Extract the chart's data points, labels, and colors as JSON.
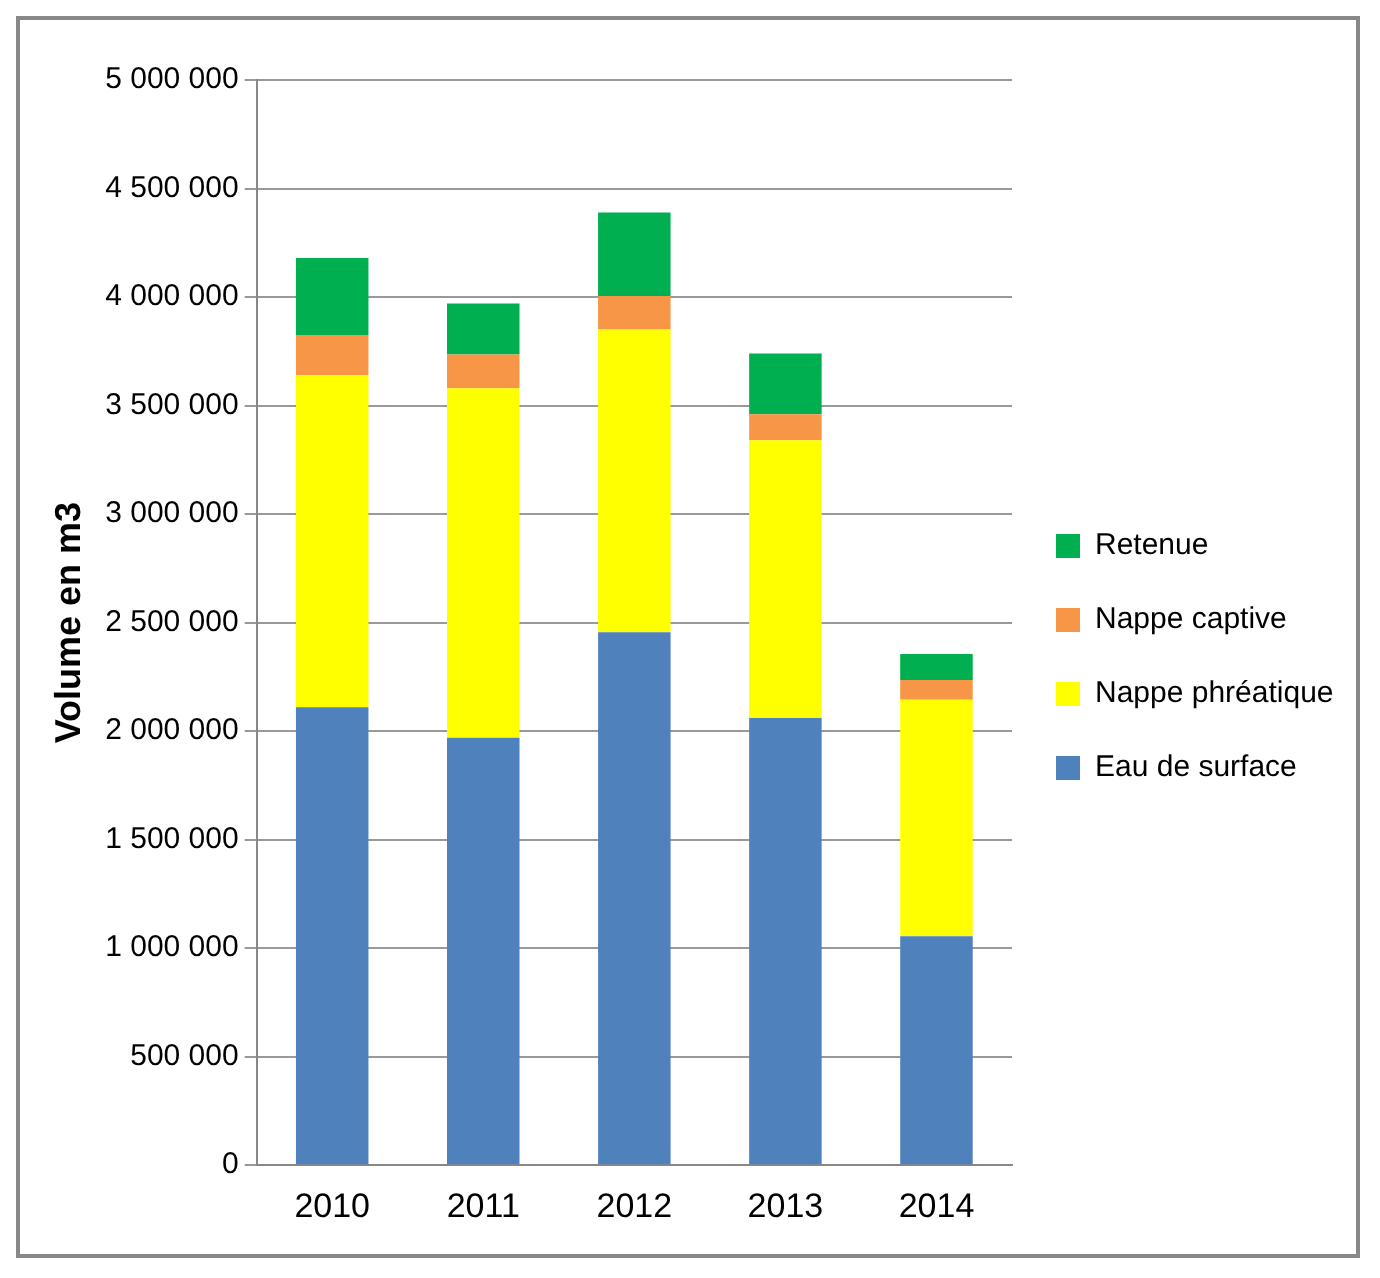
{
  "chart_data": {
    "type": "bar",
    "stacked": true,
    "ylabel": "Volume en m3",
    "categories": [
      "2010",
      "2011",
      "2012",
      "2013",
      "2014"
    ],
    "series": [
      {
        "name": "Eau de surface",
        "color": "#4f81bd",
        "values": [
          2110000,
          1970000,
          2455000,
          2060000,
          1055000
        ]
      },
      {
        "name": "Nappe phréatique",
        "color": "#ffff00",
        "values": [
          1530000,
          1610000,
          1395000,
          1280000,
          1090000
        ]
      },
      {
        "name": "Nappe captive",
        "color": "#f79646",
        "values": [
          185000,
          155000,
          155000,
          120000,
          90000
        ]
      },
      {
        "name": "Retenue",
        "color": "#00b050",
        "values": [
          355000,
          235000,
          385000,
          280000,
          120000
        ]
      }
    ],
    "ylim": [
      0,
      5000000
    ],
    "yticks": [
      {
        "value": 0,
        "label": "0"
      },
      {
        "value": 500000,
        "label": "500 000"
      },
      {
        "value": 1000000,
        "label": "1 000 000"
      },
      {
        "value": 1500000,
        "label": "1 500 000"
      },
      {
        "value": 2000000,
        "label": "2 000 000"
      },
      {
        "value": 2500000,
        "label": "2 500 000"
      },
      {
        "value": 3000000,
        "label": "3 000 000"
      },
      {
        "value": 3500000,
        "label": "3 500 000"
      },
      {
        "value": 4000000,
        "label": "4 000 000"
      },
      {
        "value": 4500000,
        "label": "4 500 000"
      },
      {
        "value": 5000000,
        "label": "5 000 000"
      }
    ],
    "grid": "y",
    "legend": "right"
  }
}
